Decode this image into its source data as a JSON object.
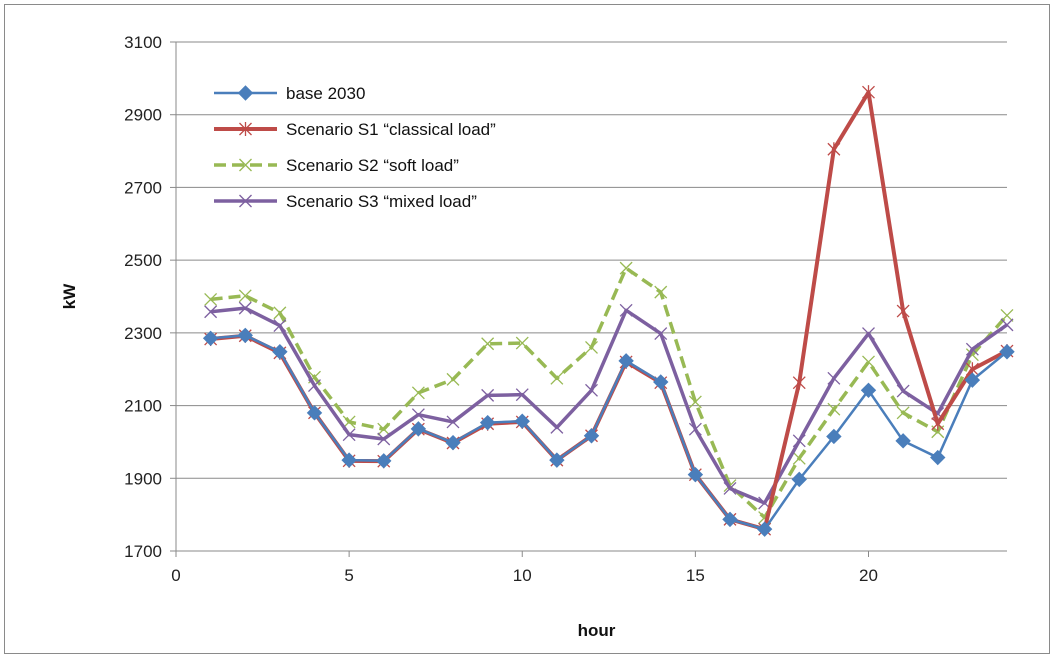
{
  "chart_data": {
    "type": "line",
    "title": "",
    "xlabel": "hour",
    "ylabel": "kW",
    "xlim": [
      0,
      24
    ],
    "ylim": [
      1700,
      3100
    ],
    "xticks": [
      0,
      5,
      10,
      15,
      20
    ],
    "yticks": [
      1700,
      1900,
      2100,
      2300,
      2500,
      2700,
      2900,
      3100
    ],
    "grid": {
      "horizontal": true,
      "vertical": false
    },
    "legend_position": "top-left",
    "x": [
      1,
      2,
      3,
      4,
      5,
      6,
      7,
      8,
      9,
      10,
      11,
      12,
      13,
      14,
      15,
      16,
      17,
      18,
      19,
      20,
      21,
      22,
      23,
      24
    ],
    "series": [
      {
        "name": "base 2030",
        "color": "#4A7EBB",
        "marker": "diamond",
        "dash": "solid",
        "values": [
          2285,
          2293,
          2248,
          2080,
          1950,
          1948,
          2036,
          1998,
          2053,
          2057,
          1950,
          2017,
          2223,
          2165,
          1910,
          1787,
          1760,
          1897,
          2015,
          2142,
          2003,
          1957,
          2170,
          2248
        ]
      },
      {
        "name": "Scenario S1 “classical load”",
        "color": "#BE4B48",
        "marker": "asterisk",
        "dash": "solid",
        "values": [
          2283,
          2292,
          2245,
          2080,
          1948,
          1947,
          2035,
          1997,
          2050,
          2055,
          1950,
          2017,
          2220,
          2163,
          1910,
          1787,
          1760,
          2163,
          2805,
          2962,
          2360,
          2050,
          2200,
          2250
        ]
      },
      {
        "name": "Scenario S2 “soft load”",
        "color": "#98B954",
        "marker": "x",
        "dash": "dashed",
        "values": [
          2392,
          2402,
          2355,
          2178,
          2055,
          2035,
          2135,
          2172,
          2270,
          2272,
          2175,
          2260,
          2478,
          2412,
          2110,
          1880,
          1792,
          1955,
          2090,
          2220,
          2080,
          2028,
          2240,
          2348
        ]
      },
      {
        "name": "Scenario S3 “mixed load”",
        "color": "#7D60A0",
        "marker": "x",
        "dash": "solid",
        "values": [
          2358,
          2368,
          2320,
          2155,
          2020,
          2008,
          2075,
          2055,
          2128,
          2130,
          2040,
          2142,
          2362,
          2298,
          2035,
          1872,
          1832,
          2003,
          2175,
          2298,
          2140,
          2078,
          2255,
          2322
        ]
      }
    ]
  }
}
